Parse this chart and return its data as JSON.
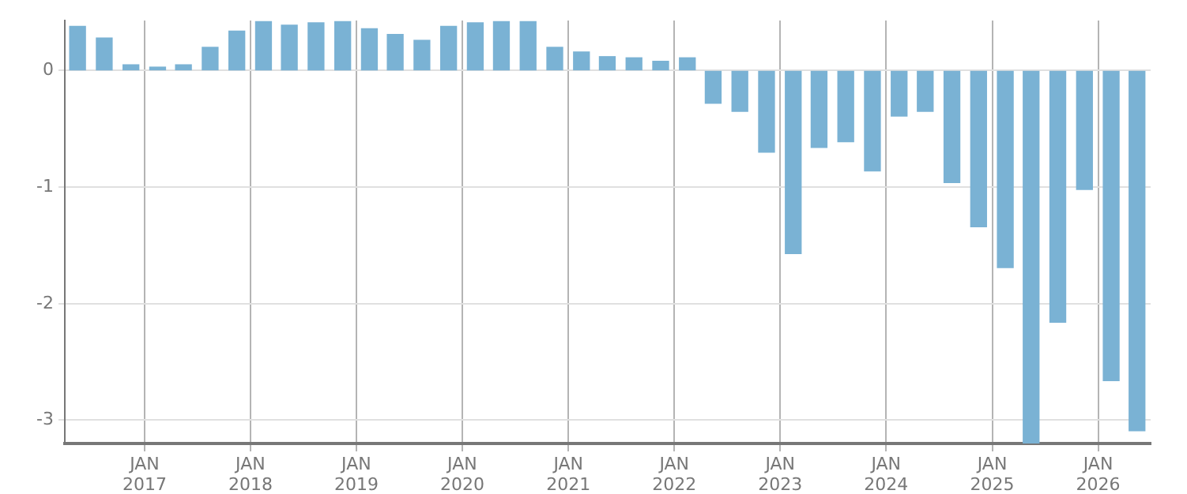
{
  "chart_data": {
    "type": "bar",
    "color": "#7ab2d4",
    "x": [
      "2016-05-15",
      "2016-08-15",
      "2016-11-15",
      "2017-02-15",
      "2017-05-15",
      "2017-08-15",
      "2017-11-15",
      "2018-02-15",
      "2018-05-15",
      "2018-08-15",
      "2018-11-15",
      "2019-02-15",
      "2019-05-15",
      "2019-08-15",
      "2019-11-15",
      "2020-02-15",
      "2020-05-15",
      "2020-08-15",
      "2020-11-15",
      "2021-02-15",
      "2021-05-15",
      "2021-08-15",
      "2021-11-15",
      "2022-02-15",
      "2022-05-15",
      "2022-08-15",
      "2022-11-15",
      "2023-02-15",
      "2023-05-15",
      "2023-08-15",
      "2023-11-15",
      "2024-02-15",
      "2024-05-15",
      "2024-08-15",
      "2024-11-15",
      "2025-02-15",
      "2025-05-15",
      "2025-08-15",
      "2025-11-15",
      "2026-02-15",
      "2026-05-15"
    ],
    "values": [
      0.38,
      0.28,
      0.05,
      0.03,
      0.05,
      0.2,
      0.34,
      0.42,
      0.39,
      0.41,
      0.42,
      0.36,
      0.31,
      0.26,
      0.38,
      0.41,
      0.42,
      0.42,
      0.2,
      0.16,
      0.12,
      0.11,
      0.08,
      0.11,
      -0.28,
      -0.35,
      -0.7,
      -1.57,
      -0.66,
      -0.61,
      -0.86,
      -0.39,
      -0.35,
      -0.96,
      -1.34,
      -1.69,
      -3.2,
      -2.16,
      -1.02,
      -2.66,
      -3.09
    ],
    "xlim": [
      "2016-04-01",
      "2026-07-01"
    ],
    "xticks": [
      {
        "value": "2017-01-01",
        "label": "JAN 2017"
      },
      {
        "value": "2018-01-01",
        "label": "JAN 2018"
      },
      {
        "value": "2019-01-01",
        "label": "JAN 2019"
      },
      {
        "value": "2020-01-01",
        "label": "JAN 2020"
      },
      {
        "value": "2021-01-01",
        "label": "JAN 2021"
      },
      {
        "value": "2022-01-01",
        "label": "JAN 2022"
      },
      {
        "value": "2023-01-01",
        "label": "JAN 2023"
      },
      {
        "value": "2024-01-01",
        "label": "JAN 2024"
      },
      {
        "value": "2025-01-01",
        "label": "JAN 2025"
      },
      {
        "value": "2026-01-01",
        "label": "JAN 2026"
      }
    ],
    "ylim": [
      -3.2,
      0.43
    ],
    "yticks": [
      0,
      -1,
      -2,
      -3
    ],
    "grid": true
  }
}
